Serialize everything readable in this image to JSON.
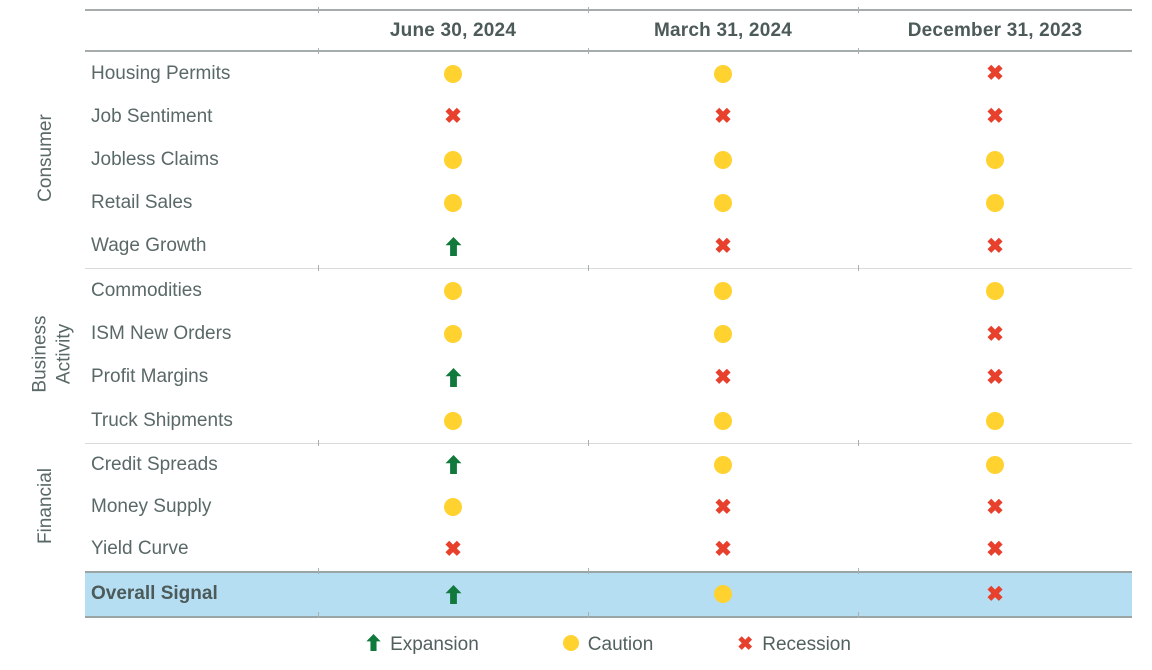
{
  "chart_data": {
    "type": "table",
    "columns": [
      "June 30, 2024",
      "March 31, 2024",
      "December 31, 2023"
    ],
    "groups": [
      {
        "label": "Consumer",
        "rows": [
          {
            "label": "Housing Permits",
            "values": [
              "caution",
              "caution",
              "recession"
            ]
          },
          {
            "label": "Job Sentiment",
            "values": [
              "recession",
              "recession",
              "recession"
            ]
          },
          {
            "label": "Jobless Claims",
            "values": [
              "caution",
              "caution",
              "caution"
            ]
          },
          {
            "label": "Retail Sales",
            "values": [
              "caution",
              "caution",
              "caution"
            ]
          },
          {
            "label": "Wage Growth",
            "values": [
              "expansion",
              "recession",
              "recession"
            ]
          }
        ]
      },
      {
        "label": "Business Activity",
        "rows": [
          {
            "label": "Commodities",
            "values": [
              "caution",
              "caution",
              "caution"
            ]
          },
          {
            "label": "ISM New Orders",
            "values": [
              "caution",
              "caution",
              "recession"
            ]
          },
          {
            "label": "Profit Margins",
            "values": [
              "expansion",
              "recession",
              "recession"
            ]
          },
          {
            "label": "Truck Shipments",
            "values": [
              "caution",
              "caution",
              "caution"
            ]
          }
        ]
      },
      {
        "label": "Financial",
        "rows": [
          {
            "label": "Credit Spreads",
            "values": [
              "expansion",
              "caution",
              "caution"
            ]
          },
          {
            "label": "Money Supply",
            "values": [
              "caution",
              "recession",
              "recession"
            ]
          },
          {
            "label": "Yield Curve",
            "values": [
              "recession",
              "recession",
              "recession"
            ]
          }
        ]
      }
    ],
    "overall": {
      "label": "Overall Signal",
      "values": [
        "expansion",
        "caution",
        "recession"
      ]
    },
    "legend": [
      {
        "status": "expansion",
        "label": "Expansion"
      },
      {
        "status": "caution",
        "label": "Caution"
      },
      {
        "status": "recession",
        "label": "Recession"
      }
    ],
    "status_colors": {
      "expansion": "#12793c",
      "caution": "#ffd230",
      "recession": "#e7402c"
    }
  },
  "colors": {
    "overall_row_highlight": "#b6def3"
  }
}
